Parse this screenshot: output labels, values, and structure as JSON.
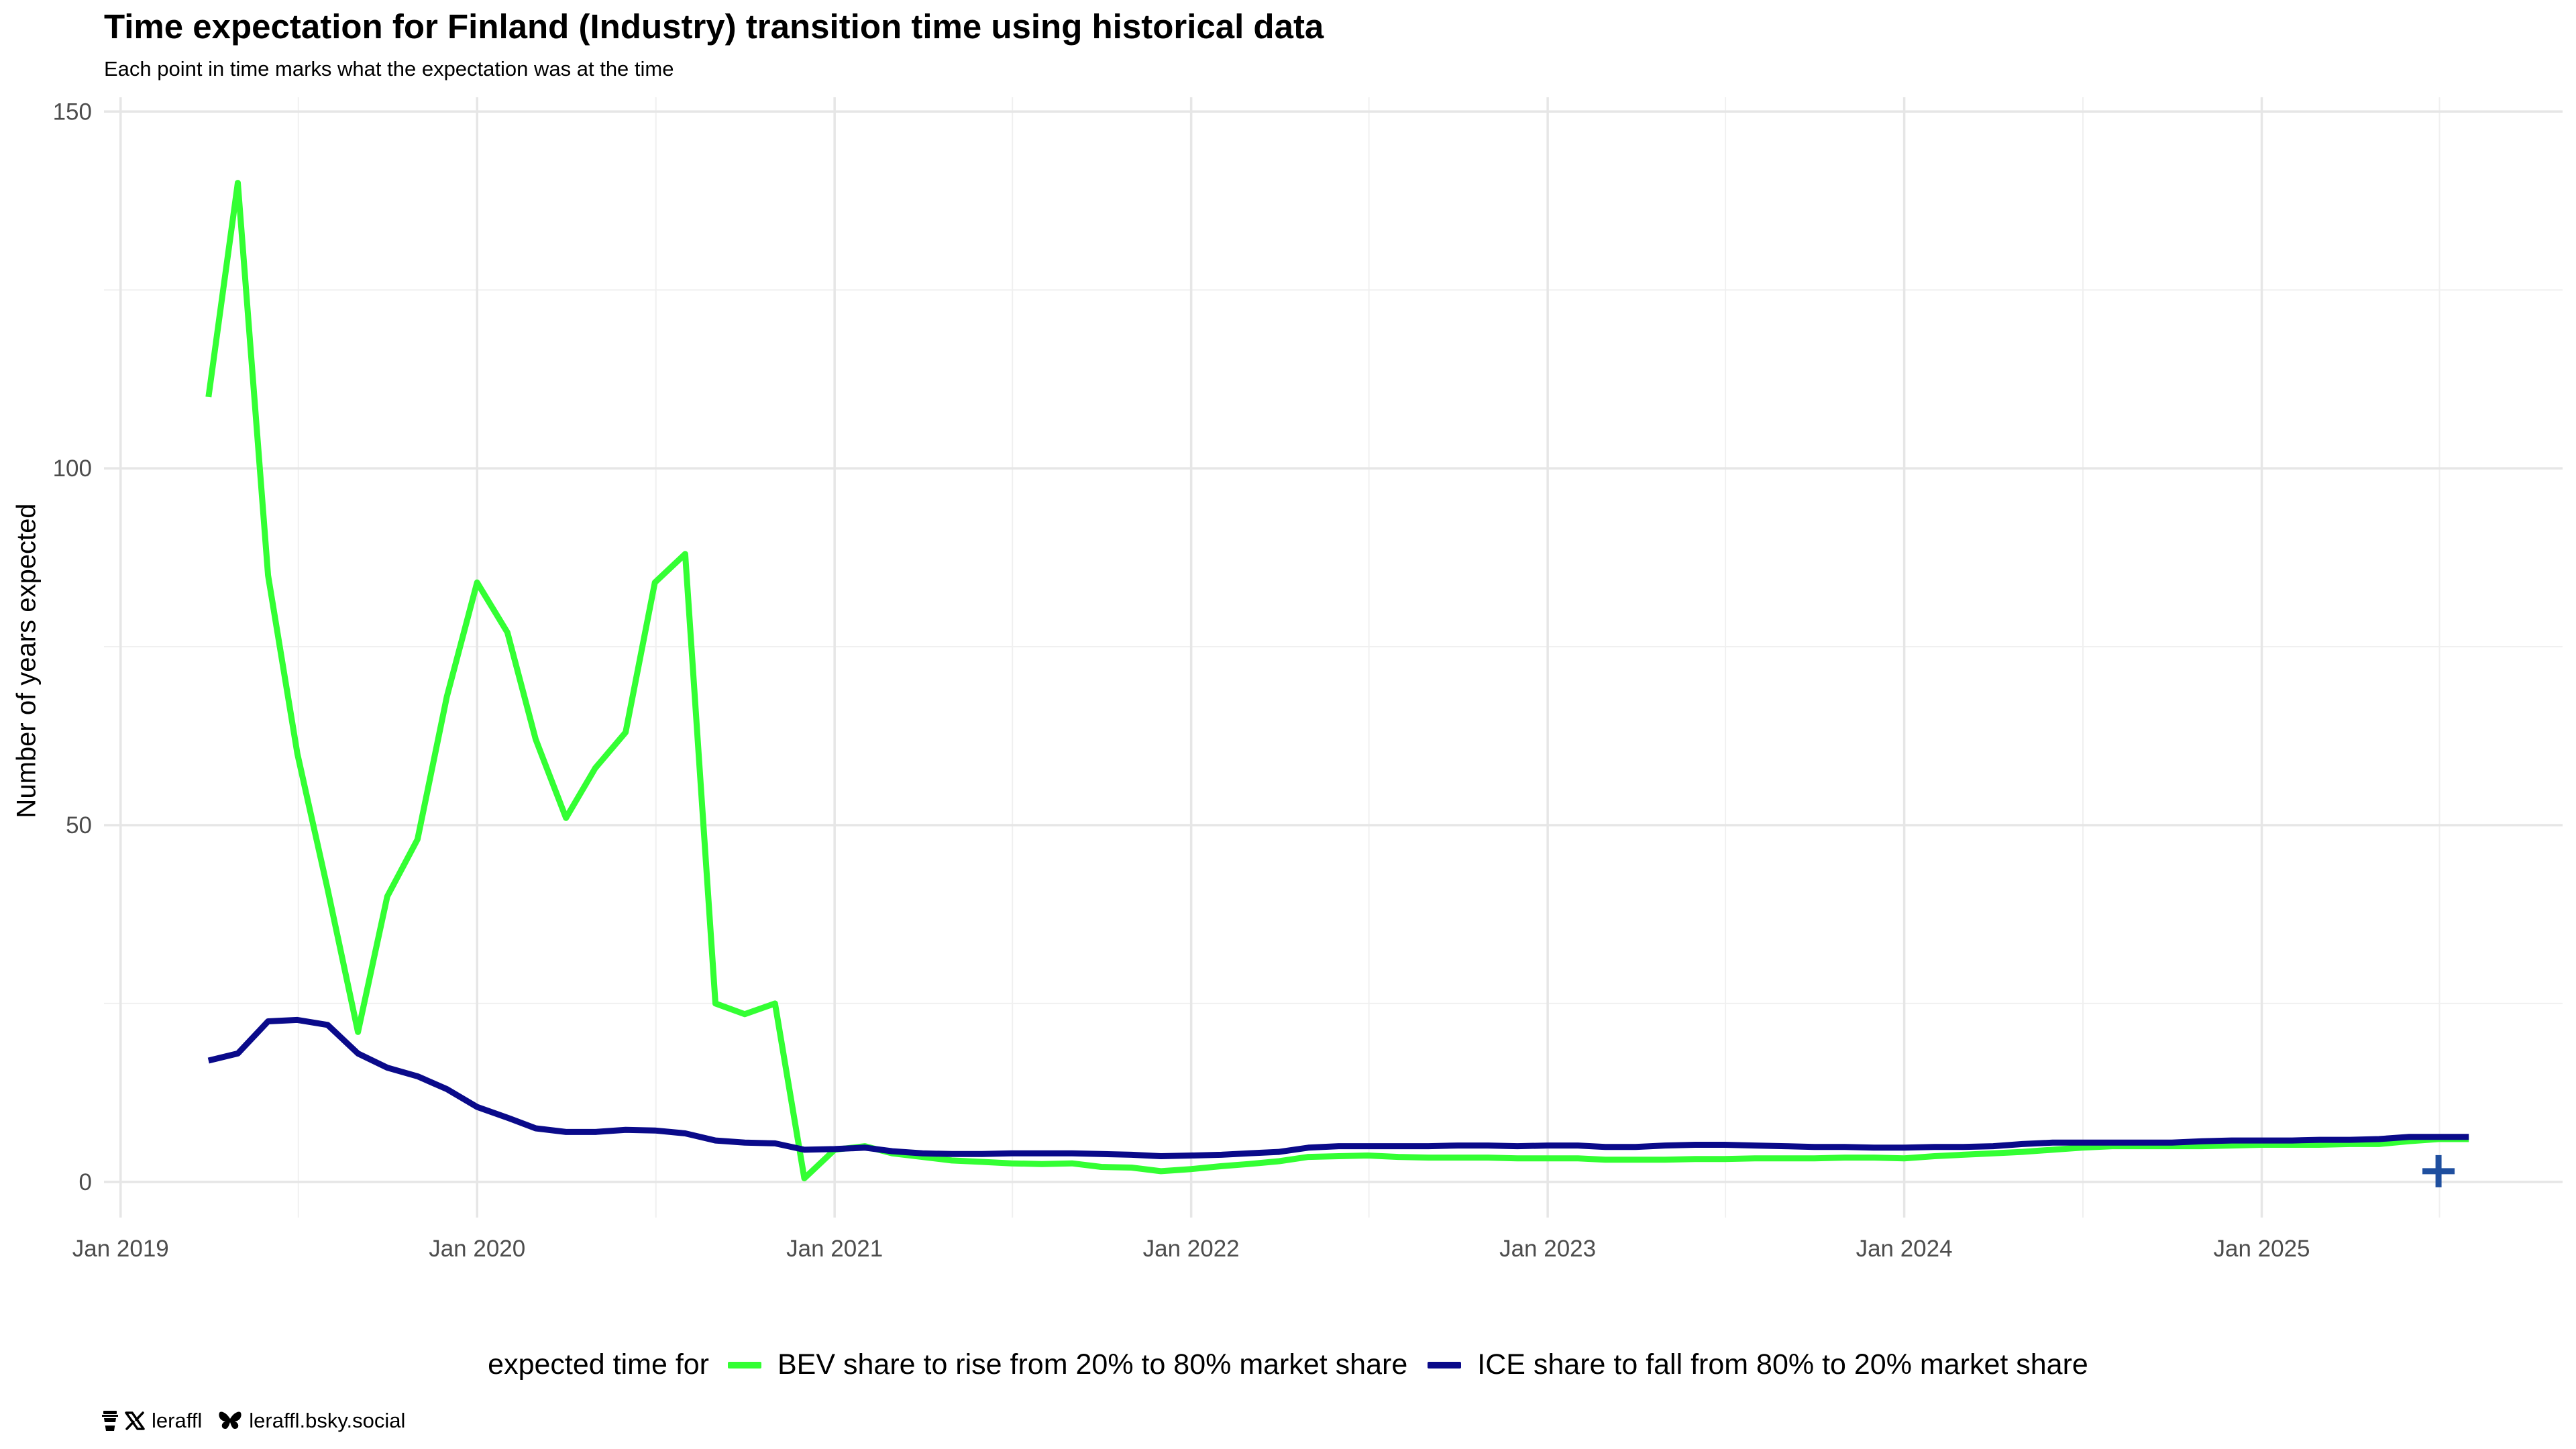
{
  "chart_data": {
    "type": "line",
    "title": "Time expectation for Finland (Industry) transition time using historical data",
    "subtitle": "Each point in time marks what the expectation was at the time",
    "xlabel": "",
    "ylabel": "Number of years expected",
    "xlim": [
      "2018-12-15",
      "2025-11-05"
    ],
    "ylim": [
      -5,
      152
    ],
    "x_ticks": [
      "2019-01-01",
      "2020-01-01",
      "2021-01-01",
      "2022-01-01",
      "2023-01-01",
      "2024-01-01",
      "2025-01-01"
    ],
    "x_tick_labels": [
      "Jan 2019",
      "Jan 2020",
      "Jan 2021",
      "Jan 2022",
      "Jan 2023",
      "Jan 2024",
      "Jan 2025"
    ],
    "y_ticks": [
      0,
      50,
      100,
      150
    ],
    "y_tick_labels": [
      "0",
      "50",
      "100",
      "150"
    ],
    "grid": true,
    "legend_title": "expected time for",
    "legend_position": "bottom",
    "series": [
      {
        "name": "BEV share to rise from 20% to 80% market share",
        "color": "#33ff33",
        "x": [
          "2019-04-01",
          "2019-05-01",
          "2019-06-01",
          "2019-07-01",
          "2019-08-01",
          "2019-09-01",
          "2019-10-01",
          "2019-11-01",
          "2019-12-01",
          "2020-01-01",
          "2020-02-01",
          "2020-03-01",
          "2020-04-01",
          "2020-05-01",
          "2020-06-01",
          "2020-07-01",
          "2020-08-01",
          "2020-09-01",
          "2020-10-01",
          "2020-11-01",
          "2020-12-01",
          "2021-01-01",
          "2021-02-01",
          "2021-03-01",
          "2021-04-01",
          "2021-05-01",
          "2021-06-01",
          "2021-07-01",
          "2021-08-01",
          "2021-09-01",
          "2021-10-01",
          "2021-11-01",
          "2021-12-01",
          "2022-01-01",
          "2022-02-01",
          "2022-03-01",
          "2022-04-01",
          "2022-05-01",
          "2022-06-01",
          "2022-07-01",
          "2022-08-01",
          "2022-09-01",
          "2022-10-01",
          "2022-11-01",
          "2022-12-01",
          "2023-01-01",
          "2023-02-01",
          "2023-03-01",
          "2023-04-01",
          "2023-05-01",
          "2023-06-01",
          "2023-07-01",
          "2023-08-01",
          "2023-09-01",
          "2023-10-01",
          "2023-11-01",
          "2023-12-01",
          "2024-01-01",
          "2024-02-01",
          "2024-03-01",
          "2024-04-01",
          "2024-05-01",
          "2024-06-01",
          "2024-07-01",
          "2024-08-01",
          "2024-09-01",
          "2024-10-01",
          "2024-11-01",
          "2024-12-01",
          "2025-01-01",
          "2025-02-01",
          "2025-03-01",
          "2025-04-01",
          "2025-05-01",
          "2025-06-01",
          "2025-07-01",
          "2025-08-01"
        ],
        "values": [
          110,
          140,
          85,
          60,
          41,
          21,
          40,
          48,
          68,
          84,
          77,
          62,
          51,
          58,
          63,
          84,
          88,
          25,
          23.5,
          25,
          0.5,
          4.5,
          5,
          4,
          3.5,
          3,
          2.8,
          2.6,
          2.5,
          2.6,
          2.1,
          2,
          1.5,
          1.8,
          2.2,
          2.5,
          2.9,
          3.5,
          3.6,
          3.7,
          3.5,
          3.4,
          3.4,
          3.4,
          3.3,
          3.3,
          3.3,
          3.1,
          3.1,
          3.1,
          3.2,
          3.2,
          3.3,
          3.3,
          3.3,
          3.4,
          3.4,
          3.3,
          3.6,
          3.8,
          4,
          4.2,
          4.5,
          4.8,
          5,
          5,
          5,
          5,
          5.1,
          5.2,
          5.2,
          5.2,
          5.3,
          5.3,
          5.7,
          6,
          6
        ]
      },
      {
        "name": "ICE share to fall from 80% to 20% market share",
        "color": "#0a0a8a",
        "x": [
          "2019-04-01",
          "2019-05-01",
          "2019-06-01",
          "2019-07-01",
          "2019-08-01",
          "2019-09-01",
          "2019-10-01",
          "2019-11-01",
          "2019-12-01",
          "2020-01-01",
          "2020-02-01",
          "2020-03-01",
          "2020-04-01",
          "2020-05-01",
          "2020-06-01",
          "2020-07-01",
          "2020-08-01",
          "2020-09-01",
          "2020-10-01",
          "2020-11-01",
          "2020-12-01",
          "2021-01-01",
          "2021-02-01",
          "2021-03-01",
          "2021-04-01",
          "2021-05-01",
          "2021-06-01",
          "2021-07-01",
          "2021-08-01",
          "2021-09-01",
          "2021-10-01",
          "2021-11-01",
          "2021-12-01",
          "2022-01-01",
          "2022-02-01",
          "2022-03-01",
          "2022-04-01",
          "2022-05-01",
          "2022-06-01",
          "2022-07-01",
          "2022-08-01",
          "2022-09-01",
          "2022-10-01",
          "2022-11-01",
          "2022-12-01",
          "2023-01-01",
          "2023-02-01",
          "2023-03-01",
          "2023-04-01",
          "2023-05-01",
          "2023-06-01",
          "2023-07-01",
          "2023-08-01",
          "2023-09-01",
          "2023-10-01",
          "2023-11-01",
          "2023-12-01",
          "2024-01-01",
          "2024-02-01",
          "2024-03-01",
          "2024-04-01",
          "2024-05-01",
          "2024-06-01",
          "2024-07-01",
          "2024-08-01",
          "2024-09-01",
          "2024-10-01",
          "2024-11-01",
          "2024-12-01",
          "2025-01-01",
          "2025-02-01",
          "2025-03-01",
          "2025-04-01",
          "2025-05-01",
          "2025-06-01",
          "2025-07-01",
          "2025-08-01"
        ],
        "values": [
          17,
          18,
          22.5,
          22.7,
          22,
          18,
          16,
          14.8,
          13,
          10.5,
          9,
          7.5,
          7,
          7,
          7.3,
          7.2,
          6.8,
          5.8,
          5.5,
          5.4,
          4.5,
          4.6,
          4.8,
          4.3,
          4,
          3.9,
          3.9,
          4,
          4,
          4,
          3.9,
          3.8,
          3.6,
          3.7,
          3.8,
          4,
          4.2,
          4.8,
          5,
          5,
          5,
          5,
          5.1,
          5.1,
          5,
          5.1,
          5.1,
          4.9,
          4.9,
          5.1,
          5.2,
          5.2,
          5.1,
          5,
          4.9,
          4.9,
          4.8,
          4.8,
          4.9,
          4.9,
          5,
          5.3,
          5.5,
          5.5,
          5.5,
          5.5,
          5.5,
          5.7,
          5.8,
          5.8,
          5.8,
          5.9,
          5.9,
          6,
          6.3,
          6.3,
          6.3
        ]
      }
    ],
    "marker": {
      "label": "+",
      "x": "2025-07-01",
      "y": 1.5,
      "color": "#1f4f9f"
    }
  },
  "credits": {
    "x_handle": "leraffl",
    "bsky_handle": "leraffl.bsky.social"
  },
  "icons": [
    "coffee-icon",
    "x-logo-icon",
    "butterfly-icon"
  ]
}
